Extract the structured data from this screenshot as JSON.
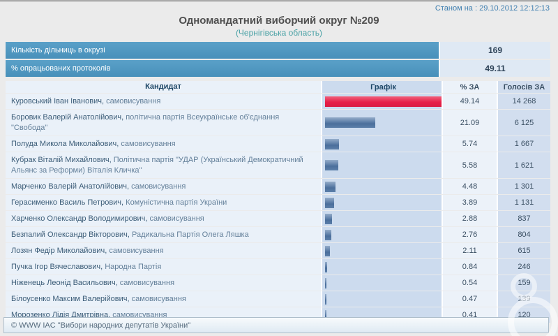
{
  "page": {
    "timestamp": "Станом на : 29.10.2012 12:12:13",
    "title": "Одномандатний виборчий округ №209",
    "subtitle": "(Чернігівська область)",
    "footer": "© WWW IAC \"Вибори народних депутатів України\""
  },
  "colors": {
    "header_blue": "#4b96bf",
    "leader_bar_red": "#e62048",
    "bar_blue": "#4b6f9c",
    "subtitle_teal": "#49a1a5"
  },
  "summary": {
    "rows": [
      {
        "label": "Кількість дільниць в окрузі",
        "value": "169"
      },
      {
        "label": "% опрацьованих протоколів",
        "value": "49.11"
      }
    ]
  },
  "results_table": {
    "headers": [
      "Кандидат",
      "Графік",
      "% ЗА",
      "Голосів ЗА"
    ],
    "max_percent": 49.14,
    "rows": [
      {
        "name": "Куровський Іван Іванович",
        "affiliation": "самовисування",
        "percent": "49.14",
        "votes": "14 268",
        "bar": "red"
      },
      {
        "name": "Боровик Валерій Анатолійович",
        "affiliation": "політична партія Всеукраїнське об'єднання \"Свобода\"",
        "percent": "21.09",
        "votes": "6 125",
        "bar": "blue"
      },
      {
        "name": "Полуда Микола Миколайович",
        "affiliation": "самовисування",
        "percent": "5.74",
        "votes": "1 667",
        "bar": "blue"
      },
      {
        "name": "Кубрак Віталій Михайлович",
        "affiliation": "Політична партія \"УДАР (Український Демократичний Альянс за Реформи) Віталія Кличка\"",
        "percent": "5.58",
        "votes": "1 621",
        "bar": "blue"
      },
      {
        "name": "Марченко Валерій Анатолійович",
        "affiliation": "самовисування",
        "percent": "4.48",
        "votes": "1 301",
        "bar": "blue"
      },
      {
        "name": "Герасименко Василь Петрович",
        "affiliation": "Комуністична партія України",
        "percent": "3.89",
        "votes": "1 131",
        "bar": "blue"
      },
      {
        "name": "Харченко Олександр Володимирович",
        "affiliation": "самовисування",
        "percent": "2.88",
        "votes": "837",
        "bar": "blue"
      },
      {
        "name": "Безпалий Олександр Вікторович",
        "affiliation": "Радикальна Партія Олега Ляшка",
        "percent": "2.76",
        "votes": "804",
        "bar": "blue"
      },
      {
        "name": "Лозян Федір Миколайович",
        "affiliation": "самовисування",
        "percent": "2.11",
        "votes": "615",
        "bar": "blue"
      },
      {
        "name": "Пучка Ігор Вячеславович",
        "affiliation": "Народна Партія",
        "percent": "0.84",
        "votes": "246",
        "bar": "blue"
      },
      {
        "name": "Ніженець Леонід Васильович",
        "affiliation": "самовисування",
        "percent": "0.54",
        "votes": "159",
        "bar": "blue"
      },
      {
        "name": "Білоусенко Максим Валерійович",
        "affiliation": "самовисування",
        "percent": "0.47",
        "votes": "139",
        "bar": "blue"
      },
      {
        "name": "Морозенко Лідія Дмитрівна",
        "affiliation": "самовисування",
        "percent": "0.41",
        "votes": "120",
        "bar": "blue"
      }
    ]
  }
}
